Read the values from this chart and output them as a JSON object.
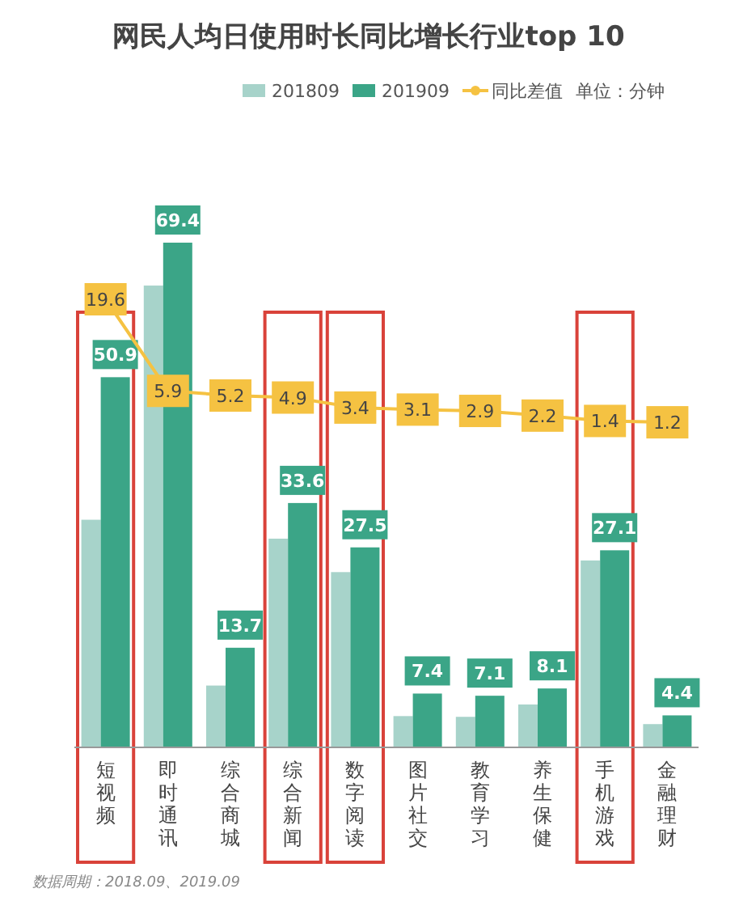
{
  "chart_data": {
    "type": "bar",
    "title": "网民人均日使用时长同比增长行业top 10",
    "categories": [
      "短视频",
      "即时通讯",
      "综合商城",
      "综合新闻",
      "数字阅读",
      "图片社交",
      "教育学习",
      "养生保健",
      "手机游戏",
      "金融理财"
    ],
    "series": [
      {
        "name": "201809",
        "color": "#a7d3ca",
        "values": [
          31.3,
          63.5,
          8.5,
          28.7,
          24.1,
          4.3,
          4.2,
          5.9,
          25.7,
          3.2
        ]
      },
      {
        "name": "201909",
        "color": "#3ba587",
        "values": [
          50.9,
          69.4,
          13.7,
          33.6,
          27.5,
          7.4,
          7.1,
          8.1,
          27.1,
          4.4
        ],
        "value_labels": [
          "50.9",
          "69.4",
          "13.7",
          "33.6",
          "27.5",
          "7.4",
          "7.1",
          "8.1",
          "27.1",
          "4.4"
        ]
      },
      {
        "name": "同比差值",
        "type": "line",
        "axis": "y2",
        "marker": "square",
        "color": "#f5c242",
        "values": [
          19.6,
          5.9,
          5.2,
          4.9,
          3.4,
          3.1,
          2.9,
          2.2,
          1.4,
          1.2
        ],
        "value_labels": [
          "19.6",
          "5.9",
          "5.2",
          "4.9",
          "3.4",
          "3.1",
          "2.9",
          "2.2",
          "1.4",
          "1.2"
        ]
      }
    ],
    "legend": "top",
    "annotations": [
      "单位：分钟",
      "数据周期：2018.09、2019.09"
    ]
  }
}
